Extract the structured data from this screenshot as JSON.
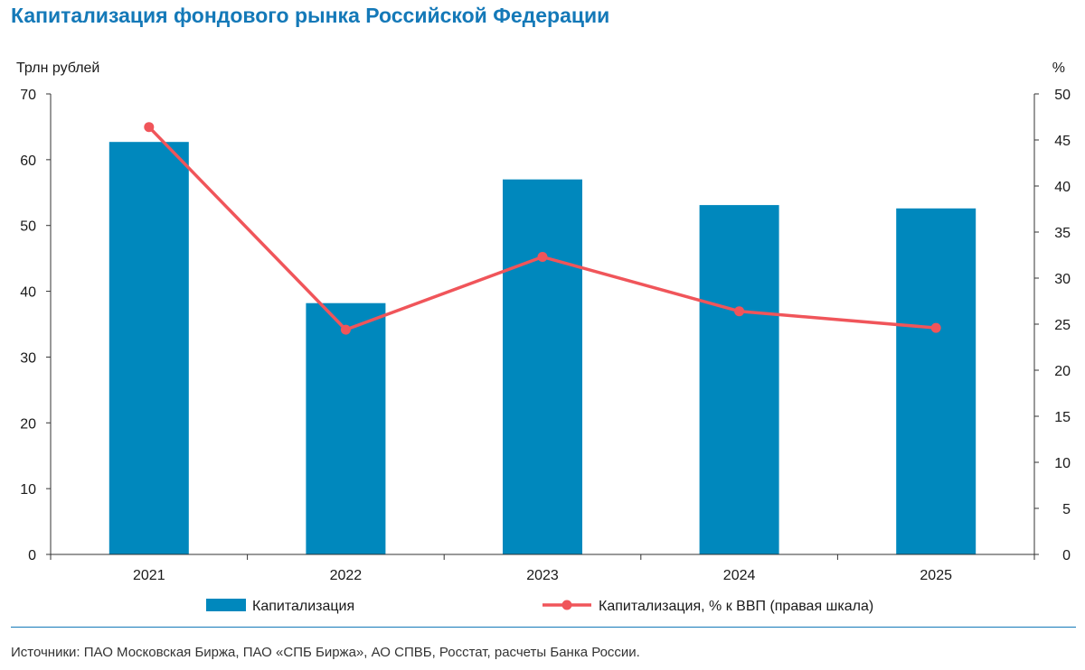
{
  "title": "Капитализация фондового рынка Российской Федерации",
  "source": "Источники: ПАО Московская Биржа, ПАО «СПБ Биржа», АО СПВБ, Росстат, расчеты Банка России.",
  "colors": {
    "bar": "#0088bd",
    "line": "#f0555a",
    "title": "#1479b8",
    "axis": "#333333"
  },
  "chart_data": {
    "type": "bar",
    "title": "Капитализация фондового рынка Российской Федерации",
    "categories": [
      "2021",
      "2022",
      "2023",
      "2024",
      "2025"
    ],
    "ylabel": "Трлн рублей",
    "y2label": "%",
    "ylim": [
      0,
      70
    ],
    "y2lim": [
      0,
      50
    ],
    "yticks": [
      "0",
      "10",
      "20",
      "30",
      "40",
      "50",
      "60",
      "70"
    ],
    "y2ticks": [
      "0",
      "5",
      "10",
      "15",
      "20",
      "25",
      "30",
      "35",
      "40",
      "45",
      "50"
    ],
    "grid": false,
    "legend": "bottom",
    "series": [
      {
        "name": "Капитализация",
        "type": "bar",
        "axis": "left",
        "values": [
          62.7,
          38.2,
          57.0,
          53.1,
          52.6
        ]
      },
      {
        "name": "Капитализация, % к ВВП (правая шкала)",
        "type": "line",
        "axis": "right",
        "values": [
          46.4,
          24.4,
          32.3,
          26.4,
          24.6
        ]
      }
    ]
  }
}
